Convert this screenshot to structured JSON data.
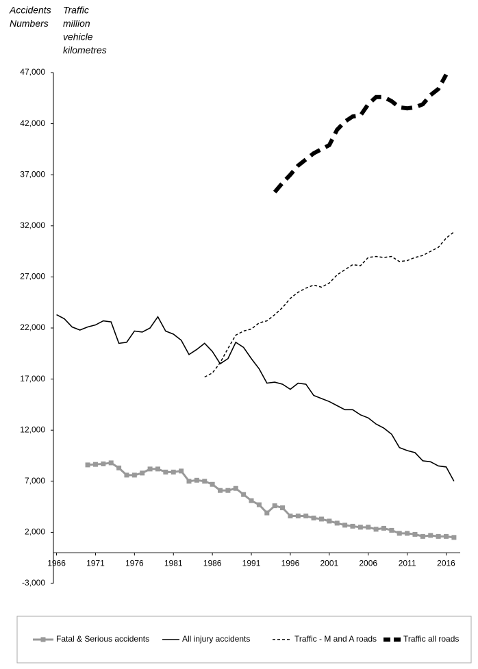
{
  "chart_data": {
    "type": "line",
    "axis_labels": [
      [
        "Accidents",
        "Numbers"
      ],
      [
        "Traffic",
        "million",
        "vehicle",
        "kilometres"
      ]
    ],
    "xlim": [
      1965.6,
      2017.8
    ],
    "xticks": [
      1966,
      1971,
      1976,
      1981,
      1986,
      1991,
      1996,
      2001,
      2006,
      2011,
      2016
    ],
    "ylim": [
      -3000,
      47000
    ],
    "yticks": [
      {
        "value": -3000,
        "label": "-3,000"
      },
      {
        "value": 2000,
        "label": "2,000"
      },
      {
        "value": 7000,
        "label": "7,000"
      },
      {
        "value": 12000,
        "label": "12,000"
      },
      {
        "value": 17000,
        "label": "17,000"
      },
      {
        "value": 22000,
        "label": "22,000"
      },
      {
        "value": 27000,
        "label": "27,000"
      },
      {
        "value": 32000,
        "label": "32,000"
      },
      {
        "value": 37000,
        "label": "37,000"
      },
      {
        "value": 42000,
        "label": "42,000"
      },
      {
        "value": 47000,
        "label": "47,000"
      }
    ],
    "grid": false,
    "legend": "bottom",
    "series": [
      {
        "name": "Fatal & Serious accidents",
        "color": "#999999",
        "style": "square-markers",
        "x": [
          1970,
          1971,
          1972,
          1973,
          1974,
          1975,
          1976,
          1977,
          1978,
          1979,
          1980,
          1981,
          1982,
          1983,
          1984,
          1985,
          1986,
          1987,
          1988,
          1989,
          1990,
          1991,
          1992,
          1993,
          1994,
          1995,
          1996,
          1997,
          1998,
          1999,
          2000,
          2001,
          2002,
          2003,
          2004,
          2005,
          2006,
          2007,
          2008,
          2009,
          2010,
          2011,
          2012,
          2013,
          2014,
          2015,
          2016,
          2017
        ],
        "values": [
          8600,
          8650,
          8700,
          8800,
          8300,
          7600,
          7600,
          7800,
          8200,
          8200,
          7900,
          7900,
          8000,
          7000,
          7100,
          7000,
          6700,
          6100,
          6100,
          6300,
          5700,
          5100,
          4700,
          3900,
          4600,
          4400,
          3600,
          3600,
          3600,
          3400,
          3300,
          3100,
          2900,
          2700,
          2600,
          2500,
          2500,
          2300,
          2400,
          2200,
          1900,
          1900,
          1800,
          1600,
          1700,
          1600,
          1600,
          1500
        ]
      },
      {
        "name": "All injury accidents",
        "color": "#000000",
        "style": "solid",
        "x": [
          1966,
          1967,
          1968,
          1969,
          1970,
          1971,
          1972,
          1973,
          1974,
          1975,
          1976,
          1977,
          1978,
          1979,
          1980,
          1981,
          1982,
          1983,
          1984,
          1985,
          1986,
          1987,
          1988,
          1989,
          1990,
          1991,
          1992,
          1993,
          1994,
          1995,
          1996,
          1997,
          1998,
          1999,
          2000,
          2001,
          2002,
          2003,
          2004,
          2005,
          2006,
          2007,
          2008,
          2009,
          2010,
          2011,
          2012,
          2013,
          2014,
          2015,
          2016,
          2017
        ],
        "values": [
          23300,
          22900,
          22100,
          21800,
          22100,
          22300,
          22700,
          22600,
          20500,
          20600,
          21700,
          21600,
          22000,
          23100,
          21700,
          21400,
          20800,
          19400,
          19900,
          20500,
          19700,
          18500,
          19000,
          20600,
          20100,
          19000,
          18000,
          16600,
          16700,
          16500,
          16000,
          16600,
          16500,
          15400,
          15100,
          14800,
          14400,
          14000,
          14000,
          13500,
          13200,
          12600,
          12200,
          11600,
          10300,
          10000,
          9800,
          9000,
          8900,
          8500,
          8400,
          7000
        ]
      },
      {
        "name": "Traffic - M and A roads",
        "color": "#000000",
        "style": "dashed",
        "x": [
          1985,
          1986,
          1987,
          1988,
          1989,
          1990,
          1991,
          1992,
          1993,
          1994,
          1995,
          1996,
          1997,
          1998,
          1999,
          2000,
          2001,
          2002,
          2003,
          2004,
          2005,
          2006,
          2007,
          2008,
          2009,
          2010,
          2011,
          2012,
          2013,
          2014,
          2015,
          2016,
          2017
        ],
        "values": [
          17200,
          17600,
          18600,
          20000,
          21300,
          21700,
          21900,
          22500,
          22700,
          23300,
          24000,
          24900,
          25500,
          25900,
          26200,
          26000,
          26400,
          27200,
          27700,
          28200,
          28100,
          28900,
          29000,
          28900,
          29000,
          28500,
          28600,
          28900,
          29100,
          29500,
          29900,
          30800,
          31400
        ]
      },
      {
        "name": "Traffic all roads",
        "color": "#000000",
        "style": "bold-dashed",
        "x": [
          1994,
          1995,
          1996,
          1997,
          1998,
          1999,
          2000,
          2001,
          2002,
          2003,
          2004,
          2005,
          2006,
          2007,
          2008,
          2009,
          2010,
          2011,
          2012,
          2013,
          2014,
          2015,
          2016
        ],
        "values": [
          35300,
          36200,
          37000,
          37900,
          38500,
          39100,
          39500,
          39900,
          41400,
          42200,
          42700,
          42800,
          43900,
          44600,
          44600,
          44200,
          43600,
          43500,
          43600,
          43900,
          44800,
          45400,
          46800
        ]
      }
    ]
  }
}
